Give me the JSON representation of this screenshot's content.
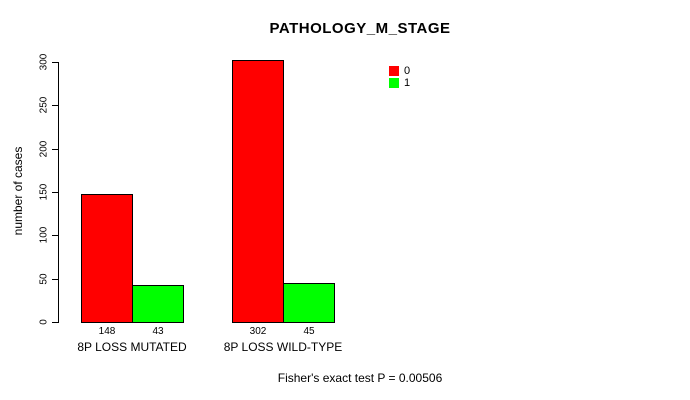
{
  "figure": {
    "title": "PATHOLOGY_M_STAGE",
    "caption": "Fisher's exact test P = 0.00506"
  },
  "chart_data": {
    "type": "bar",
    "title": "PATHOLOGY_M_STAGE",
    "categories": [
      "8P LOSS MUTATED",
      "8P LOSS WILD-TYPE"
    ],
    "series": [
      {
        "name": "0",
        "color": "#FF0000",
        "values": [
          148,
          302
        ]
      },
      {
        "name": "1",
        "color": "#00FF00",
        "values": [
          43,
          45
        ]
      }
    ],
    "bar_value_labels": [
      [
        148,
        43
      ],
      [
        302,
        45
      ]
    ],
    "xlabel": "",
    "ylabel": "number of cases",
    "ylim": [
      0,
      300
    ],
    "yticks": [
      0,
      50,
      100,
      150,
      200,
      250,
      300
    ],
    "grid": false,
    "legend_position": "top-right",
    "annotation": "Fisher's exact test P = 0.00506"
  }
}
